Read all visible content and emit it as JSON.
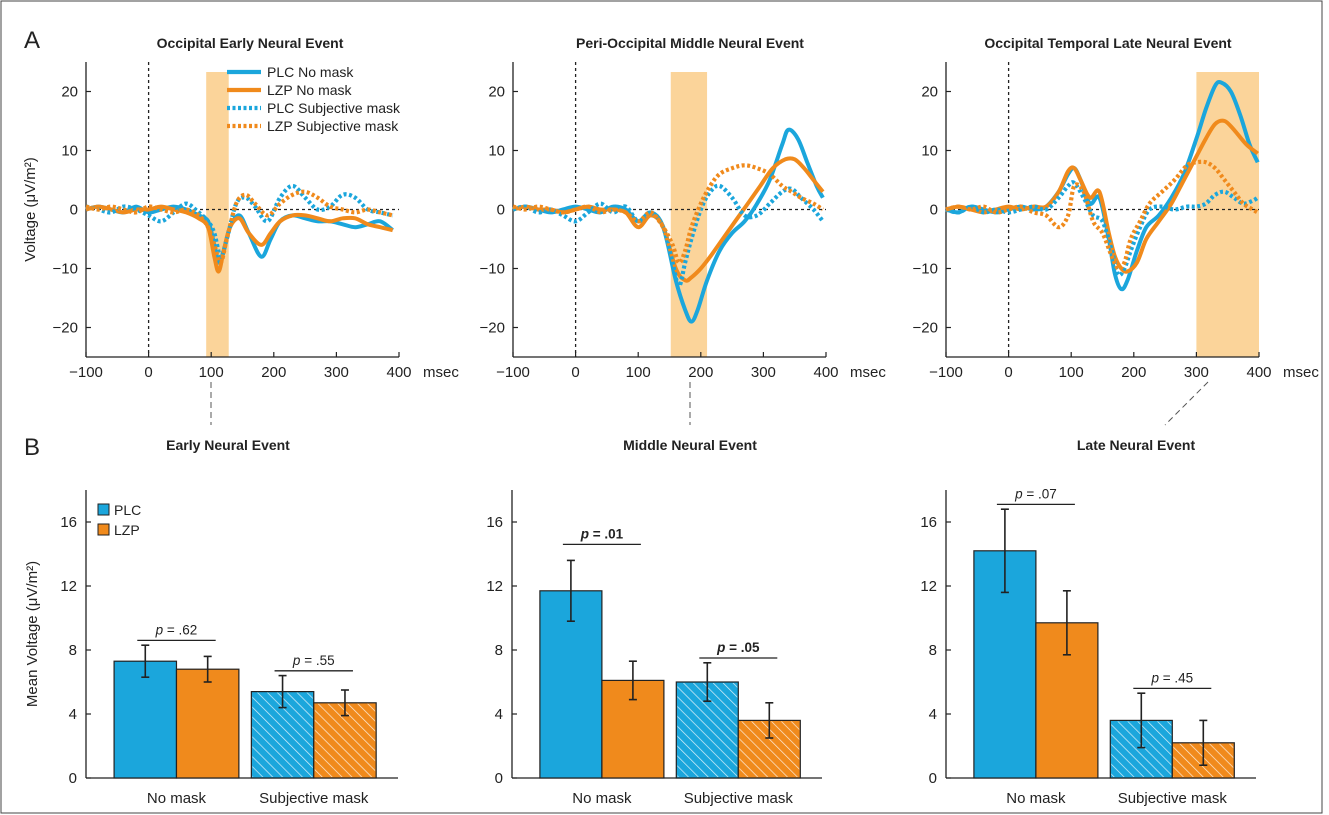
{
  "panel_labels": {
    "a": "A",
    "b": "B"
  },
  "colors": {
    "plc": "#1ba6dc",
    "lzp": "#f08a1c",
    "window": "#fbd49a",
    "axis": "#222222"
  },
  "chart_data": [
    {
      "type": "line",
      "title": "Occipital Early Neural Event",
      "ylabel": "Voltage (μV/m²)",
      "x_unit": "msec",
      "xlim": [
        -100,
        400
      ],
      "ylim": [
        -25,
        25
      ],
      "xticks": [
        "−100",
        "0",
        "100",
        "200",
        "300",
        "400"
      ],
      "yticks": [
        "−20",
        "−10",
        "0",
        "10",
        "20"
      ],
      "window": [
        92,
        128
      ],
      "legend": [
        "PLC No mask",
        "LZP No mask",
        "PLC Subjective mask",
        "LZP Subjective mask"
      ],
      "series": [
        {
          "name": "PLC No mask",
          "style": "solid",
          "color": "plc",
          "x": [
            -100,
            -80,
            -60,
            -40,
            -20,
            0,
            20,
            40,
            60,
            80,
            95,
            105,
            112,
            120,
            130,
            145,
            160,
            180,
            195,
            210,
            230,
            250,
            270,
            290,
            310,
            330,
            350,
            370,
            390
          ],
          "y": [
            0,
            0.5,
            0,
            -0.5,
            0.5,
            -0.5,
            0,
            0.5,
            0,
            -1,
            -2,
            -6,
            -9,
            -7,
            -3,
            -1,
            -4,
            -8,
            -5,
            -2,
            -1,
            -1.5,
            -2,
            -2,
            -2.5,
            -3,
            -2.5,
            -2,
            -3.5
          ]
        },
        {
          "name": "LZP No mask",
          "style": "solid",
          "color": "lzp",
          "x": [
            -100,
            -80,
            -60,
            -40,
            -20,
            0,
            20,
            40,
            60,
            80,
            95,
            105,
            112,
            120,
            130,
            145,
            160,
            180,
            195,
            210,
            230,
            250,
            270,
            290,
            310,
            330,
            350,
            370,
            390
          ],
          "y": [
            0,
            0.5,
            0,
            -0.5,
            0,
            0,
            0.5,
            0,
            -0.5,
            -1.5,
            -3,
            -8,
            -10.5,
            -7,
            -3,
            -1.5,
            -4,
            -6,
            -4,
            -2,
            -1,
            -1,
            -1.5,
            -2,
            -1.5,
            -1.5,
            -2.5,
            -3,
            -3.5
          ]
        },
        {
          "name": "PLC Subjective mask",
          "style": "dotted",
          "color": "plc",
          "x": [
            -100,
            -80,
            -60,
            -40,
            -20,
            0,
            20,
            40,
            60,
            80,
            95,
            105,
            115,
            125,
            140,
            155,
            170,
            190,
            210,
            230,
            250,
            270,
            290,
            310,
            330,
            350,
            370,
            390
          ],
          "y": [
            0.5,
            0,
            -0.5,
            0.5,
            0,
            -1,
            -2,
            -0.5,
            1,
            -0.5,
            -2,
            -4,
            -8,
            -5,
            1,
            2,
            0.5,
            -2,
            2,
            4,
            2,
            0,
            0.5,
            2.5,
            2,
            0,
            -0.5,
            -1
          ]
        },
        {
          "name": "LZP Subjective mask",
          "style": "dotted",
          "color": "lzp",
          "x": [
            -100,
            -80,
            -60,
            -40,
            -20,
            0,
            20,
            40,
            60,
            80,
            95,
            105,
            115,
            125,
            140,
            155,
            170,
            190,
            210,
            230,
            250,
            270,
            290,
            310,
            330,
            350,
            370,
            390
          ],
          "y": [
            0.5,
            0,
            0.5,
            0,
            -0.5,
            0.5,
            0,
            -0.5,
            0,
            -1,
            -3,
            -6,
            -9,
            -5,
            1,
            2.5,
            1,
            -1,
            1,
            2.5,
            3,
            2,
            0.5,
            0,
            -0.5,
            0,
            -0.5,
            -1
          ]
        }
      ]
    },
    {
      "type": "line",
      "title": "Peri-Occipital Middle Neural Event",
      "ylabel": "",
      "x_unit": "msec",
      "xlim": [
        -100,
        400
      ],
      "ylim": [
        -25,
        25
      ],
      "xticks": [
        "−100",
        "0",
        "100",
        "200",
        "300",
        "400"
      ],
      "yticks": [
        "−20",
        "−10",
        "0",
        "10",
        "20"
      ],
      "window": [
        152,
        210
      ],
      "legend": [],
      "series": [
        {
          "name": "PLC No mask",
          "style": "solid",
          "color": "plc",
          "x": [
            -100,
            -80,
            -60,
            -40,
            -20,
            0,
            20,
            40,
            60,
            80,
            100,
            120,
            140,
            160,
            175,
            185,
            195,
            210,
            230,
            250,
            270,
            290,
            310,
            330,
            340,
            355,
            370,
            385,
            395
          ],
          "y": [
            0,
            0.5,
            0,
            -0.5,
            0,
            0.5,
            0,
            -0.5,
            0.5,
            0,
            -2,
            -0.5,
            -3,
            -12,
            -17,
            -19,
            -17,
            -12,
            -7,
            -4,
            -2,
            1,
            5,
            11,
            13.5,
            12,
            8,
            4,
            2
          ]
        },
        {
          "name": "LZP No mask",
          "style": "solid",
          "color": "lzp",
          "x": [
            -100,
            -80,
            -60,
            -40,
            -20,
            0,
            20,
            40,
            60,
            80,
            100,
            120,
            140,
            160,
            175,
            185,
            200,
            215,
            235,
            255,
            275,
            295,
            315,
            335,
            350,
            365,
            380,
            395
          ],
          "y": [
            0,
            0.5,
            0,
            0,
            -0.5,
            0,
            0.5,
            0,
            0,
            -0.5,
            -3,
            -1,
            -3,
            -10,
            -12,
            -11.5,
            -10,
            -8,
            -5,
            -2,
            1,
            4,
            7,
            8.5,
            8.5,
            7,
            5,
            3
          ]
        },
        {
          "name": "PLC Subjective mask",
          "style": "dotted",
          "color": "plc",
          "x": [
            -100,
            -80,
            -60,
            -40,
            -20,
            0,
            20,
            40,
            60,
            80,
            100,
            120,
            140,
            155,
            165,
            175,
            185,
            200,
            215,
            230,
            250,
            270,
            290,
            310,
            330,
            345,
            360,
            380,
            395
          ],
          "y": [
            0,
            0.5,
            -0.5,
            0,
            -1,
            -2,
            -0.5,
            1,
            -0.5,
            0.5,
            -2,
            -0.5,
            -3,
            -9,
            -13,
            -9,
            -5,
            0,
            3,
            4,
            2,
            -1,
            -1,
            1,
            3,
            3.5,
            2,
            0,
            -2
          ]
        },
        {
          "name": "LZP Subjective mask",
          "style": "dotted",
          "color": "lzp",
          "x": [
            -100,
            -80,
            -60,
            -40,
            -20,
            0,
            20,
            40,
            60,
            80,
            100,
            120,
            140,
            155,
            165,
            175,
            185,
            200,
            215,
            230,
            250,
            270,
            290,
            310,
            330,
            345,
            360,
            380,
            395
          ],
          "y": [
            0.5,
            0,
            0.5,
            0,
            -0.5,
            0,
            0.5,
            -0.5,
            0,
            -0.5,
            -2,
            -0.5,
            -3,
            -6,
            -9,
            -7,
            -3,
            1,
            4,
            6,
            7,
            7.5,
            7,
            6,
            4,
            3,
            2,
            1,
            0
          ]
        }
      ]
    },
    {
      "type": "line",
      "title": "Occipital Temporal Late Neural Event",
      "ylabel": "",
      "x_unit": "msec",
      "xlim": [
        -100,
        400
      ],
      "ylim": [
        -25,
        25
      ],
      "xticks": [
        "−100",
        "0",
        "100",
        "200",
        "300",
        "400"
      ],
      "yticks": [
        "−20",
        "−10",
        "0",
        "10",
        "20"
      ],
      "window": [
        300,
        400
      ],
      "legend": [],
      "series": [
        {
          "name": "PLC No mask",
          "style": "solid",
          "color": "plc",
          "x": [
            -100,
            -80,
            -60,
            -40,
            -20,
            0,
            20,
            40,
            60,
            80,
            95,
            105,
            115,
            130,
            145,
            160,
            170,
            180,
            190,
            205,
            220,
            240,
            260,
            280,
            300,
            315,
            330,
            340,
            355,
            370,
            385,
            398
          ],
          "y": [
            0,
            -0.5,
            0.5,
            0,
            -0.5,
            0,
            0.5,
            0,
            0.5,
            3,
            6,
            7,
            5,
            1,
            2,
            -5,
            -11,
            -13.5,
            -12,
            -7,
            -3,
            -1,
            2,
            6,
            12,
            17,
            21,
            21.5,
            20,
            16,
            11,
            8
          ]
        },
        {
          "name": "LZP No mask",
          "style": "solid",
          "color": "lzp",
          "x": [
            -100,
            -80,
            -60,
            -40,
            -20,
            0,
            20,
            40,
            60,
            80,
            95,
            105,
            115,
            130,
            145,
            160,
            170,
            180,
            190,
            205,
            220,
            240,
            260,
            280,
            300,
            315,
            330,
            345,
            360,
            380,
            398
          ],
          "y": [
            0,
            0.5,
            0,
            -0.5,
            0,
            0.5,
            0,
            0.5,
            0.5,
            3,
            6.5,
            7,
            5,
            2,
            3,
            -4,
            -8,
            -10,
            -10.5,
            -9,
            -5,
            -2,
            1,
            5,
            9,
            12,
            14.5,
            15,
            13.5,
            11,
            9.5
          ]
        },
        {
          "name": "PLC Subjective mask",
          "style": "dotted",
          "color": "plc",
          "x": [
            -100,
            -80,
            -60,
            -40,
            -20,
            0,
            20,
            40,
            60,
            80,
            95,
            105,
            120,
            135,
            150,
            165,
            175,
            185,
            195,
            210,
            225,
            245,
            265,
            285,
            300,
            315,
            330,
            345,
            360,
            375,
            390,
            398
          ],
          "y": [
            0,
            -0.5,
            0.5,
            -0.5,
            0,
            -0.5,
            0,
            0.5,
            0,
            2,
            4,
            4.5,
            2,
            -1,
            -2,
            -7,
            -11,
            -10,
            -7,
            -3,
            0,
            0.5,
            0,
            0.5,
            0.5,
            1,
            2.5,
            3,
            2,
            1,
            1.5,
            2
          ]
        },
        {
          "name": "LZP Subjective mask",
          "style": "dotted",
          "color": "lzp",
          "x": [
            -100,
            -80,
            -60,
            -40,
            -20,
            0,
            20,
            40,
            60,
            80,
            95,
            105,
            120,
            135,
            150,
            165,
            175,
            185,
            195,
            210,
            225,
            245,
            265,
            285,
            300,
            315,
            330,
            345,
            360,
            375,
            390,
            398
          ],
          "y": [
            0,
            0.5,
            0,
            0.5,
            -0.5,
            0,
            0.5,
            -0.5,
            -1,
            -3,
            -1,
            4,
            3,
            -2,
            -4,
            -8,
            -10,
            -9,
            -5,
            -2,
            1,
            3,
            5,
            7.5,
            8,
            8,
            7,
            5,
            3,
            1,
            0,
            -0.5
          ]
        }
      ]
    },
    {
      "type": "bar",
      "title": "Early Neural Event",
      "ylabel": "Mean Voltage (μV/m²)",
      "ylim": [
        0,
        18
      ],
      "yticks": [
        "0",
        "4",
        "8",
        "12",
        "16"
      ],
      "categories": [
        "No mask",
        "Subjective mask"
      ],
      "legend": [
        "PLC",
        "LZP"
      ],
      "series": [
        {
          "name": "PLC",
          "color": "plc",
          "values": [
            7.3,
            5.4
          ],
          "errors": [
            1.0,
            1.0
          ]
        },
        {
          "name": "LZP",
          "color": "lzp",
          "values": [
            6.8,
            4.7
          ],
          "errors": [
            0.8,
            0.8
          ]
        }
      ],
      "annotations": [
        {
          "italic": "p",
          "text": " = .62",
          "bold": false,
          "group": 0,
          "level": 8.6
        },
        {
          "italic": "p",
          "text": " = .55",
          "bold": false,
          "group": 1,
          "level": 6.7
        }
      ]
    },
    {
      "type": "bar",
      "title": "Middle Neural Event",
      "ylabel": "",
      "ylim": [
        0,
        18
      ],
      "yticks": [
        "0",
        "4",
        "8",
        "12",
        "16"
      ],
      "categories": [
        "No mask",
        "Subjective mask"
      ],
      "legend": [],
      "series": [
        {
          "name": "PLC",
          "color": "plc",
          "values": [
            11.7,
            6.0
          ],
          "errors": [
            1.9,
            1.2
          ]
        },
        {
          "name": "LZP",
          "color": "lzp",
          "values": [
            6.1,
            3.6
          ],
          "errors": [
            1.2,
            1.1
          ]
        }
      ],
      "annotations": [
        {
          "italic": "p",
          "text": " = .01",
          "bold": true,
          "group": 0,
          "level": 14.6
        },
        {
          "italic": "p",
          "text": " = .05",
          "bold": true,
          "group": 1,
          "level": 7.5
        }
      ]
    },
    {
      "type": "bar",
      "title": "Late Neural Event",
      "ylabel": "",
      "ylim": [
        0,
        18
      ],
      "yticks": [
        "0",
        "4",
        "8",
        "12",
        "16"
      ],
      "categories": [
        "No mask",
        "Subjective mask"
      ],
      "legend": [],
      "series": [
        {
          "name": "PLC",
          "color": "plc",
          "values": [
            14.2,
            3.6
          ],
          "errors": [
            2.6,
            1.7
          ]
        },
        {
          "name": "LZP",
          "color": "lzp",
          "values": [
            9.7,
            2.2
          ],
          "errors": [
            2.0,
            1.4
          ]
        }
      ],
      "annotations": [
        {
          "italic": "p",
          "text": " = .07",
          "bold": false,
          "group": 0,
          "level": 17.1
        },
        {
          "italic": "p",
          "text": " = .45",
          "bold": false,
          "group": 1,
          "level": 5.6
        }
      ]
    }
  ]
}
